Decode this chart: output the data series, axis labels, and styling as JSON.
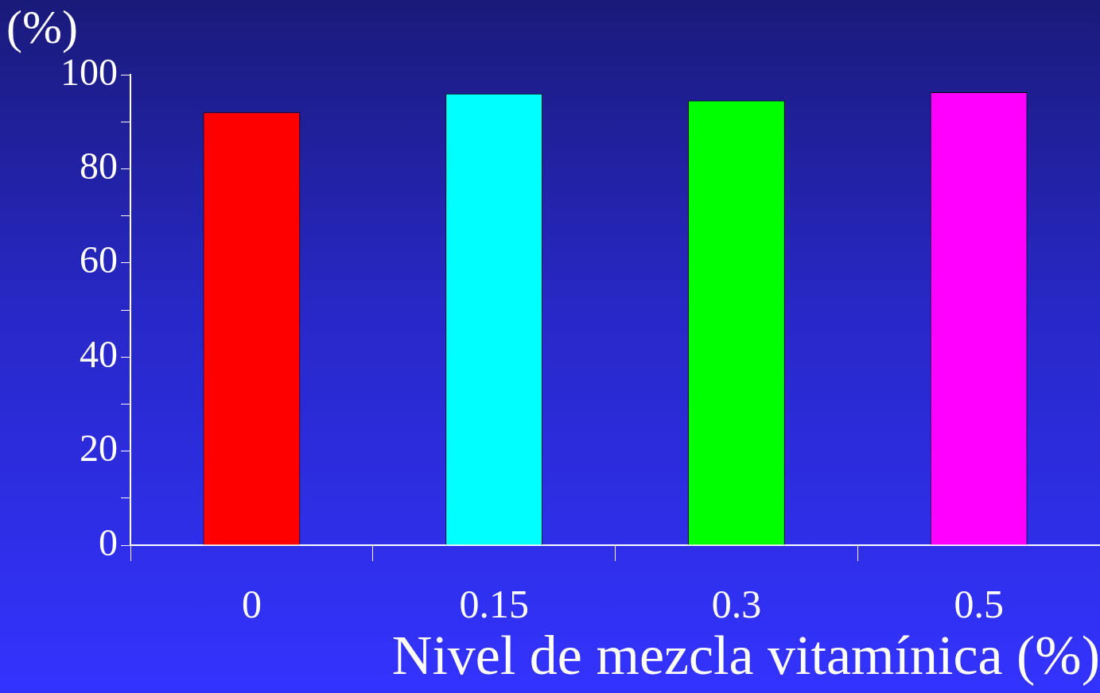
{
  "chart_data": {
    "type": "bar",
    "xlabel": "Nivel de mezcla vitamínica (%)",
    "ylabel": "(%)",
    "categories": [
      "0",
      "0.15",
      "0.3",
      "0.5"
    ],
    "values": [
      92,
      96,
      94.5,
      96.3
    ],
    "colors": [
      "#ff0000",
      "#00ffff",
      "#00ff00",
      "#ff00ff"
    ],
    "ylim": [
      0,
      100
    ],
    "yticks": [
      0,
      {
        "value": 10,
        "label": null
      },
      20,
      {
        "value": 30,
        "label": null
      },
      40,
      {
        "value": 50,
        "label": null
      },
      60,
      {
        "value": 70,
        "label": null
      },
      80,
      {
        "value": 90,
        "label": null
      },
      100
    ],
    "grid": false,
    "legend": false
  }
}
